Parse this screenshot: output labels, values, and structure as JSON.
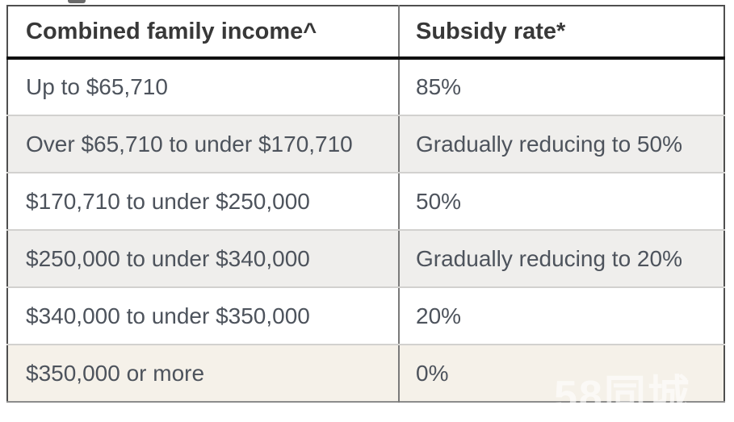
{
  "page": {
    "watermark": "58同城"
  },
  "chart_data": {
    "type": "table",
    "columns": [
      "Combined family income^",
      "Subsidy rate*"
    ],
    "rows": [
      {
        "cells": [
          "Up to $65,710",
          "85%"
        ],
        "variant": "white"
      },
      {
        "cells": [
          "Over $65,710 to under $170,710",
          "Gradually reducing to 50%"
        ],
        "variant": "gray"
      },
      {
        "cells": [
          "$170,710 to under $250,000",
          "50%"
        ],
        "variant": "white"
      },
      {
        "cells": [
          "$250,000 to under $340,000",
          "Gradually reducing to 20%"
        ],
        "variant": "gray"
      },
      {
        "cells": [
          "$340,000 to under $350,000",
          "20%"
        ],
        "variant": "white"
      },
      {
        "cells": [
          "$350,000 or more",
          "0%"
        ],
        "variant": "cream"
      }
    ]
  },
  "colors": {
    "row_gray": "#efeeec",
    "row_cream": "#f5f1e9",
    "header_rule": "#101010",
    "outer_border": "#4f4f4f",
    "column_divider": "#7a7a7a",
    "row_divider": "#d2d1cf",
    "header_text": "#383838",
    "body_text": "#4d535c",
    "watermark_text": "#ffffff"
  }
}
